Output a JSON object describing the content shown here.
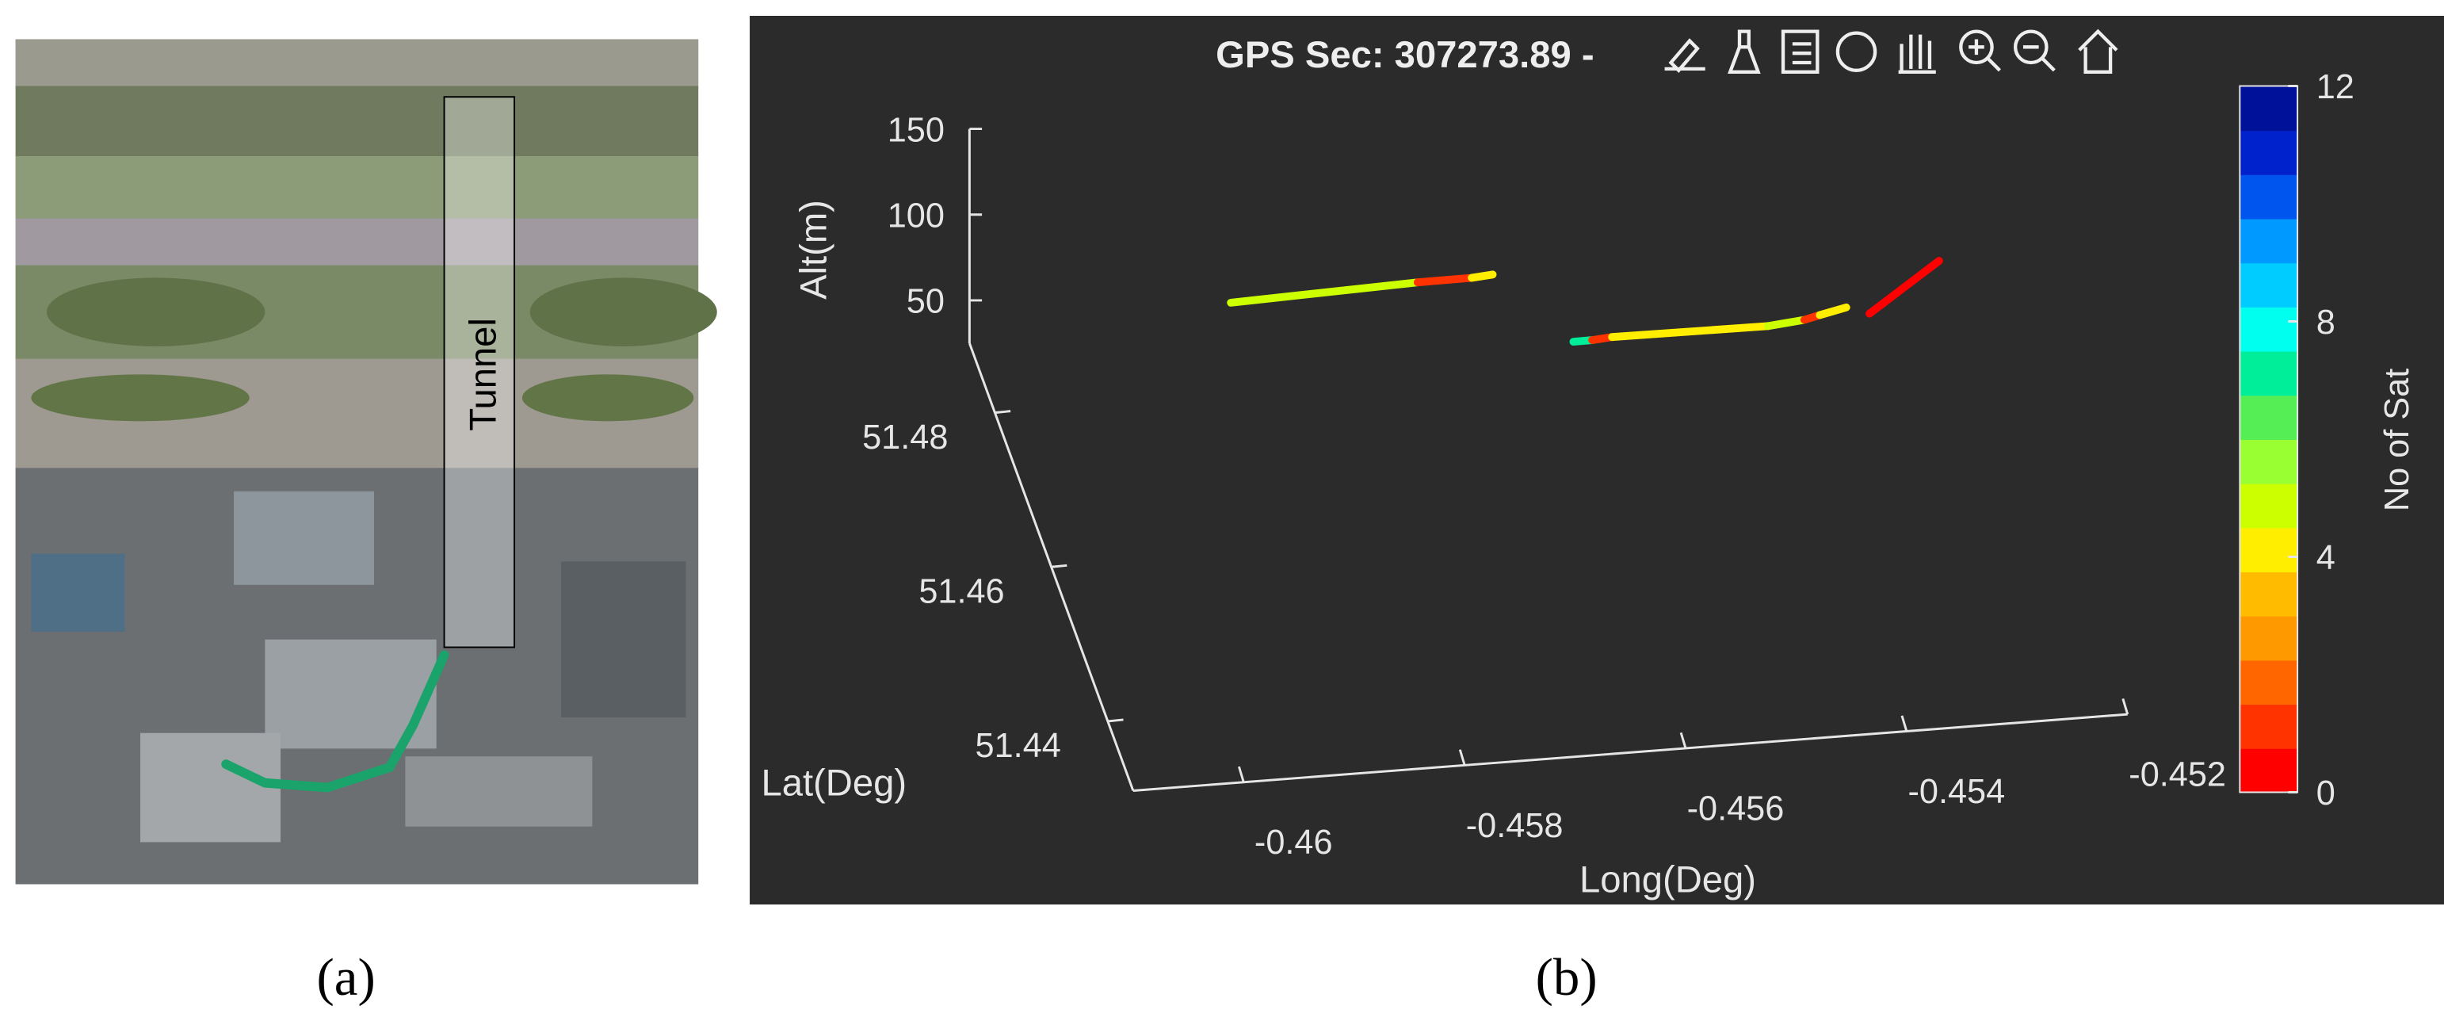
{
  "panel_a": {
    "annotation": "Tunnel",
    "label": "(a)"
  },
  "panel_b": {
    "label": "(b)"
  },
  "chart_data": {
    "type": "line3d",
    "title": "GPS Sec: 307273.89 -",
    "xlabel": "Long(Deg)",
    "ylabel": "Lat(Deg)",
    "zlabel": "Alt(m)",
    "xlim": [
      -0.461,
      -0.452
    ],
    "xticks": [
      -0.46,
      -0.458,
      -0.456,
      -0.454,
      -0.452
    ],
    "ylim": [
      51.431,
      51.489
    ],
    "yticks": [
      51.44,
      51.46,
      51.48
    ],
    "zlim": [
      25,
      150
    ],
    "zticks": [
      50,
      100,
      150
    ],
    "colorbar": {
      "label": "No of Sat",
      "clim": [
        0,
        12
      ],
      "ticks": [
        0,
        4,
        8,
        12
      ],
      "colormap": [
        "#ff0000",
        "#ff3300",
        "#ff6600",
        "#ff9900",
        "#ffbb00",
        "#ffee00",
        "#ccff00",
        "#99ff33",
        "#55ee55",
        "#00ee99",
        "#00ffee",
        "#00ccff",
        "#0099ff",
        "#0055ee",
        "#0022cc",
        "#001199"
      ]
    },
    "series": [
      {
        "x": [
          -0.45912,
          -0.45743,
          -0.45694,
          -0.45675
        ],
        "y": [
          51.47,
          51.47,
          51.47,
          51.47
        ],
        "z": [
          124.8,
          128.3,
          128.5,
          129.5
        ],
        "sats": [
          5,
          1,
          4,
          4
        ]
      },
      {
        "x": [
          -0.45602,
          -0.45585,
          -0.45567,
          -0.45426,
          -0.45393,
          -0.45379,
          -0.45355
        ],
        "y": [
          51.47,
          51.47,
          51.47,
          51.47,
          51.47,
          51.47,
          51.47
        ],
        "z": [
          86.7,
          86.8,
          87.7,
          87.1,
          89.1,
          91.2,
          94.5
        ],
        "sats": [
          7,
          1,
          4,
          5,
          1,
          4,
          4
        ]
      },
      {
        "x": [
          -0.45334,
          -0.45271
        ],
        "y": [
          51.47,
          51.47
        ],
        "z": [
          89.8,
          117.5
        ],
        "sats": [
          0,
          0
        ]
      }
    ]
  }
}
